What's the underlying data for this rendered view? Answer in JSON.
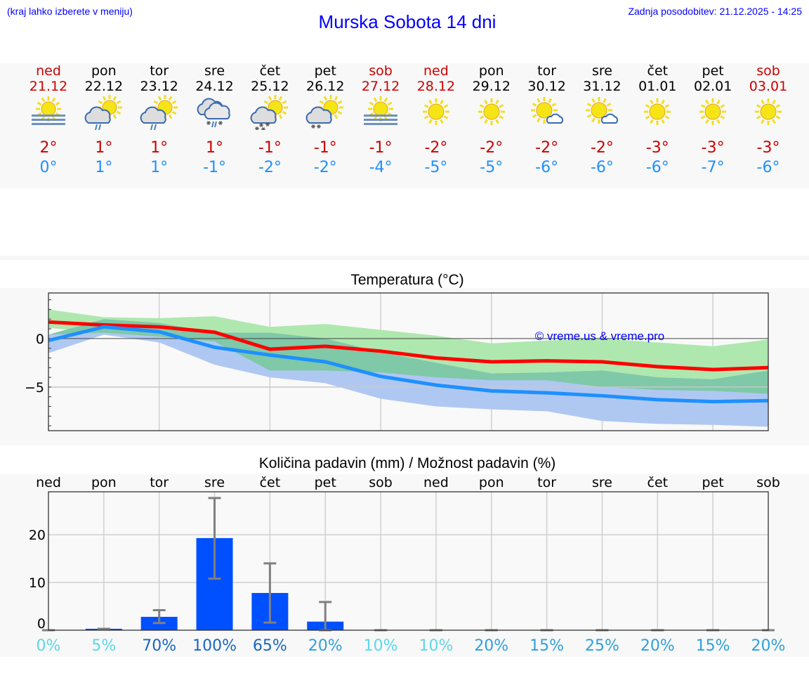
{
  "header": {
    "note": "(kraj lahko izberete v meniju)",
    "title": "Murska Sobota 14 dni",
    "updated": "Zadnja posodobitev: 21.12.2025 - 14:25"
  },
  "days": [
    {
      "day": "ned",
      "date": "21.12",
      "weekend": true,
      "icon": "fog-sun",
      "max": "2°",
      "min": "0°"
    },
    {
      "day": "pon",
      "date": "22.12",
      "weekend": false,
      "icon": "sun-cloud-rain",
      "max": "1°",
      "min": "1°"
    },
    {
      "day": "tor",
      "date": "23.12",
      "weekend": false,
      "icon": "sun-cloud-rain",
      "max": "1°",
      "min": "1°"
    },
    {
      "day": "sre",
      "date": "24.12",
      "weekend": false,
      "icon": "cloud-rain-snow",
      "max": "1°",
      "min": "-1°"
    },
    {
      "day": "čet",
      "date": "25.12",
      "weekend": false,
      "icon": "sun-cloud-snow",
      "max": "-1°",
      "min": "-2°"
    },
    {
      "day": "pet",
      "date": "26.12",
      "weekend": false,
      "icon": "sun-cloud-snow-light",
      "max": "-1°",
      "min": "-2°"
    },
    {
      "day": "sob",
      "date": "27.12",
      "weekend": true,
      "icon": "fog-sun",
      "max": "-1°",
      "min": "-4°"
    },
    {
      "day": "ned",
      "date": "28.12",
      "weekend": true,
      "icon": "sun",
      "max": "-2°",
      "min": "-5°"
    },
    {
      "day": "pon",
      "date": "29.12",
      "weekend": false,
      "icon": "sun",
      "max": "-2°",
      "min": "-5°"
    },
    {
      "day": "tor",
      "date": "30.12",
      "weekend": false,
      "icon": "sun-small-cloud",
      "max": "-2°",
      "min": "-6°"
    },
    {
      "day": "sre",
      "date": "31.12",
      "weekend": false,
      "icon": "sun-small-cloud",
      "max": "-2°",
      "min": "-6°"
    },
    {
      "day": "čet",
      "date": "01.01",
      "weekend": false,
      "icon": "sun",
      "max": "-3°",
      "min": "-6°"
    },
    {
      "day": "pet",
      "date": "02.01",
      "weekend": false,
      "icon": "sun",
      "max": "-3°",
      "min": "-7°"
    },
    {
      "day": "sob",
      "date": "03.01",
      "weekend": true,
      "icon": "sun",
      "max": "-3°",
      "min": "-6°"
    }
  ],
  "colors": {
    "max": "#ff0000",
    "min": "#1e90ff",
    "maxband": "#aee8ae",
    "minband": "#afc8f2",
    "overlap": "#7fc8a8",
    "bar": "#0050ff",
    "err": "#808080"
  },
  "chart_data": [
    {
      "type": "line",
      "title": "Temperatura (°C)",
      "watermark": "© vreme.us & vreme.pro",
      "ylim": [
        -9.5,
        4.7
      ],
      "yticks": [
        0,
        -5
      ],
      "ytick_labels": [
        "0",
        "−5"
      ],
      "x": [
        "21.12",
        "22.12",
        "23.12",
        "24.12",
        "25.12",
        "26.12",
        "27.12",
        "28.12",
        "29.12",
        "30.12",
        "31.12",
        "01.01",
        "02.01",
        "03.01"
      ],
      "series": [
        {
          "name": "max",
          "values": [
            1.7,
            1.4,
            1.2,
            0.65,
            -1.1,
            -0.8,
            -1.3,
            -2.0,
            -2.4,
            -2.3,
            -2.4,
            -2.9,
            -3.2,
            -3.0
          ]
        },
        {
          "name": "min",
          "values": [
            -0.2,
            1.2,
            0.7,
            -0.9,
            -1.7,
            -2.4,
            -3.9,
            -4.8,
            -5.4,
            -5.6,
            -5.9,
            -6.3,
            -6.5,
            -6.4
          ]
        },
        {
          "name": "max_range_upper",
          "values": [
            3.0,
            2.2,
            2.1,
            2.3,
            1.2,
            1.5,
            0.9,
            0.3,
            -0.5,
            -0.2,
            0,
            -0.4,
            -0.8,
            -0.1
          ]
        },
        {
          "name": "max_range_lower",
          "values": [
            1.1,
            0.6,
            0.2,
            -0.3,
            -3.3,
            -3.3,
            -3.5,
            -4.0,
            -4.3,
            -4.3,
            -5.0,
            -5.3,
            -5.4,
            -5.7
          ]
        },
        {
          "name": "min_range_upper",
          "values": [
            0.4,
            2.0,
            1.6,
            0.6,
            0.6,
            0,
            -1.4,
            -2.5,
            -3.6,
            -3.5,
            -3.3,
            -4.0,
            -4.2,
            -3.3
          ]
        },
        {
          "name": "min_range_lower",
          "values": [
            -1.5,
            0.4,
            -0.4,
            -2.7,
            -4.0,
            -4.6,
            -6.2,
            -7.0,
            -7.3,
            -7.5,
            -8.5,
            -8.8,
            -8.9,
            -9.1
          ]
        }
      ]
    },
    {
      "type": "bar",
      "title": "Količina padavin (mm) / Možnost padavin (%)",
      "ylim": [
        0,
        29
      ],
      "yticks": [
        0,
        10,
        20
      ],
      "categories": [
        "ned",
        "pon",
        "tor",
        "sre",
        "čet",
        "pet",
        "sob",
        "ned",
        "pon",
        "tor",
        "sre",
        "čet",
        "pet",
        "sob"
      ],
      "values": [
        0,
        0.3,
        2.8,
        19.3,
        7.8,
        1.8,
        0,
        0,
        0,
        0,
        0,
        0,
        0,
        0
      ],
      "err_low": [
        0,
        0.3,
        1.5,
        10.8,
        1.6,
        0,
        0,
        0,
        0,
        0,
        0,
        0,
        0,
        0
      ],
      "err_high": [
        0,
        0.3,
        4.2,
        27.7,
        14,
        5.9,
        0,
        0,
        0,
        0,
        0,
        0,
        0,
        0
      ],
      "probability": [
        "0%",
        "5%",
        "70%",
        "100%",
        "65%",
        "20%",
        "10%",
        "10%",
        "20%",
        "15%",
        "25%",
        "20%",
        "15%",
        "20%"
      ],
      "prob_values": [
        0,
        5,
        70,
        100,
        65,
        20,
        10,
        10,
        20,
        15,
        25,
        20,
        15,
        20
      ]
    }
  ]
}
